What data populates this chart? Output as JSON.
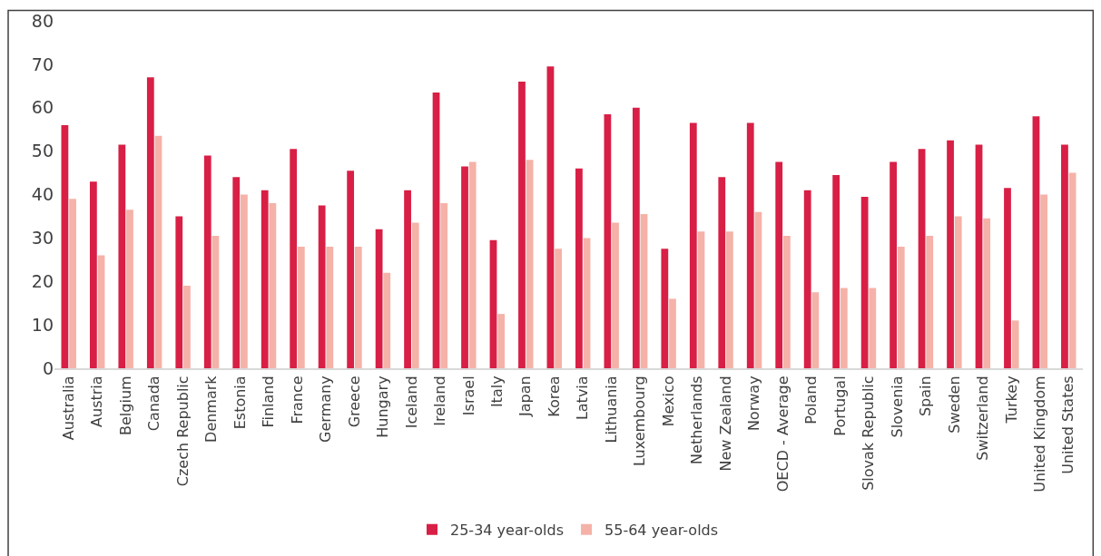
{
  "chart_data": {
    "type": "bar",
    "categories": [
      "Australia",
      "Austria",
      "Belgium",
      "Canada",
      "Czech Republic",
      "Denmark",
      "Estonia",
      "Finland",
      "France",
      "Germany",
      "Greece",
      "Hungary",
      "Iceland",
      "Ireland",
      "Israel",
      "Italy",
      "Japan",
      "Korea",
      "Latvia",
      "Lithuania",
      "Luxembourg",
      "Mexico",
      "Netherlands",
      "New Zealand",
      "Norway",
      "OECD - Average",
      "Poland",
      "Portugal",
      "Slovak Republic",
      "Slovenia",
      "Spain",
      "Sweden",
      "Switzerland",
      "Turkey",
      "United Kingdom",
      "United States"
    ],
    "series": [
      {
        "name": "25-34 year-olds",
        "color": "#d81f45",
        "values": [
          56,
          43,
          51.5,
          67,
          35,
          49,
          44,
          41,
          50.5,
          37.5,
          45.5,
          32,
          41,
          63.5,
          46.5,
          29.5,
          66,
          69.5,
          46,
          58.5,
          60,
          27.5,
          56.5,
          44,
          56.5,
          47.5,
          41,
          44.5,
          39.5,
          47.5,
          50.5,
          52.5,
          51.5,
          41.5,
          58,
          51.5
        ]
      },
      {
        "name": "55-64 year-olds",
        "color": "#f5b2a8",
        "values": [
          39,
          26,
          36.5,
          53.5,
          19,
          30.5,
          40,
          38,
          28,
          28,
          28,
          22,
          33.5,
          38,
          47.5,
          12.5,
          48,
          27.5,
          30,
          33.5,
          35.5,
          16,
          31.5,
          31.5,
          36,
          30.5,
          17.5,
          18.5,
          18.5,
          28,
          30.5,
          35,
          34.5,
          11,
          40,
          45
        ]
      }
    ],
    "ylim": [
      0,
      80
    ],
    "yticks": [
      0,
      10,
      20,
      30,
      40,
      50,
      60,
      70,
      80
    ],
    "legend": "bottom"
  }
}
